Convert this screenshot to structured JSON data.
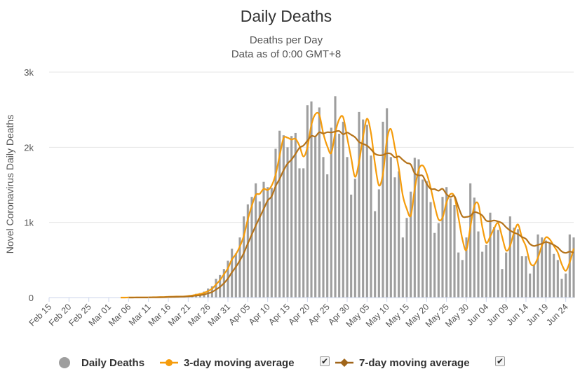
{
  "chart_data": {
    "type": "bar+line",
    "title": "Daily Deaths",
    "subtitle": [
      "Deaths per Day",
      "Data as of 0:00 GMT+8"
    ],
    "ylabel": "Novel Coronavirus Daily Deaths",
    "ylim": [
      0,
      3000
    ],
    "yticks": [
      0,
      1000,
      2000,
      3000
    ],
    "ytick_labels": [
      "0",
      "1k",
      "2k",
      "3k"
    ],
    "start_date": "Feb 15",
    "xtick_labels": [
      "Feb 15",
      "Feb 20",
      "Feb 25",
      "Mar 01",
      "Mar 06",
      "Mar 11",
      "Mar 16",
      "Mar 21",
      "Mar 26",
      "Mar 31",
      "Apr 05",
      "Apr 10",
      "Apr 15",
      "Apr 20",
      "Apr 25",
      "Apr 30",
      "May 05",
      "May 10",
      "May 15",
      "May 20",
      "May 25",
      "May 30",
      "Jun 04",
      "Jun 09",
      "Jun 14",
      "Jun 19",
      "Jun 24"
    ],
    "xtick_step_days": 5,
    "series": [
      {
        "name": "Daily Deaths",
        "type": "bar",
        "color": "#9e9e9e",
        "values": [
          0,
          0,
          0,
          0,
          0,
          0,
          0,
          0,
          0,
          0,
          0,
          0,
          0,
          0,
          0,
          0,
          0,
          0,
          1,
          0,
          0,
          1,
          2,
          1,
          2,
          5,
          8,
          3,
          9,
          8,
          15,
          12,
          14,
          15,
          20,
          27,
          35,
          50,
          60,
          80,
          120,
          150,
          250,
          300,
          380,
          490,
          650,
          590,
          800,
          1080,
          1240,
          1340,
          1520,
          1280,
          1540,
          1470,
          1460,
          1980,
          2220,
          2160,
          2000,
          2150,
          2190,
          1720,
          1720,
          2560,
          2610,
          2150,
          2530,
          1870,
          1640,
          2260,
          2680,
          2180,
          2340,
          1870,
          1370,
          1580,
          2470,
          2370,
          2300,
          1890,
          1150,
          1440,
          2340,
          2520,
          1870,
          1600,
          1680,
          800,
          1060,
          1410,
          1860,
          1840,
          1570,
          1550,
          1270,
          860,
          990,
          1340,
          1470,
          1320,
          1230,
          600,
          500,
          800,
          1520,
          1330,
          880,
          610,
          700,
          1130,
          940,
          900,
          380,
          600,
          1080,
          930,
          910,
          550,
          550,
          320,
          430,
          840,
          800,
          760,
          720,
          580,
          500,
          250,
          320,
          840,
          800
        ]
      },
      {
        "name": "3-day moving average",
        "type": "line",
        "color": "#f59c0c",
        "values": [
          0,
          0,
          0,
          0,
          0,
          0,
          0,
          0,
          0,
          0,
          0,
          0,
          0,
          0,
          0,
          0,
          0,
          0,
          0,
          0,
          1,
          1,
          1,
          1,
          2,
          3,
          5,
          5,
          7,
          7,
          11,
          12,
          14,
          14,
          16,
          21,
          27,
          37,
          48,
          63,
          87,
          117,
          173,
          233,
          310,
          390,
          507,
          577,
          680,
          823,
          1040,
          1220,
          1367,
          1380,
          1447,
          1430,
          1490,
          1637,
          1887,
          2120,
          2127,
          2103,
          2113,
          2020,
          1877,
          2000,
          2297,
          2440,
          2430,
          2183,
          2013,
          1923,
          2193,
          2373,
          2400,
          2130,
          1860,
          1607,
          1807,
          2140,
          2380,
          2187,
          1780,
          1493,
          1643,
          2100,
          2243,
          1997,
          1717,
          1360,
          1180,
          1090,
          1443,
          1703,
          1757,
          1653,
          1463,
          1227,
          1040,
          1063,
          1267,
          1377,
          1340,
          1067,
          777,
          633,
          940,
          1217,
          1243,
          940,
          730,
          813,
          923,
          990,
          807,
          627,
          687,
          870,
          973,
          797,
          677,
          467,
          433,
          530,
          690,
          800,
          773,
          687,
          600,
          443,
          357,
          470,
          653
        ]
      },
      {
        "name": "7-day moving average",
        "type": "line",
        "color": "#b5731a",
        "values": [
          0,
          0,
          0,
          0,
          0,
          0,
          0,
          0,
          0,
          0,
          0,
          0,
          0,
          0,
          0,
          0,
          0,
          0,
          0,
          0,
          0,
          0,
          1,
          1,
          1,
          2,
          3,
          3,
          4,
          5,
          7,
          9,
          10,
          12,
          13,
          16,
          20,
          26,
          32,
          41,
          56,
          74,
          107,
          143,
          191,
          253,
          336,
          408,
          493,
          594,
          718,
          839,
          958,
          1068,
          1180,
          1291,
          1347,
          1483,
          1579,
          1693,
          1782,
          1836,
          1911,
          1993,
          2024,
          2087,
          2150,
          2145,
          2200,
          2183,
          2201,
          2197,
          2209,
          2216,
          2173,
          2196,
          2166,
          2133,
          2070,
          2045,
          2022,
          1972,
          1914,
          1894,
          1897,
          1919,
          1913,
          1865,
          1878,
          1833,
          1792,
          1771,
          1654,
          1626,
          1620,
          1516,
          1447,
          1444,
          1422,
          1447,
          1375,
          1339,
          1350,
          1204,
          1081,
          1073,
          1087,
          1137,
          1124,
          1092,
          1024,
          1016,
          1026,
          1012,
          990,
          935,
          893,
          863,
          843,
          806,
          780,
          713,
          687,
          701,
          717,
          739,
          725,
          700,
          667,
          614,
          594,
          612,
          597
        ]
      }
    ],
    "legend": [
      {
        "label": "Daily Deaths",
        "symbol": "circle",
        "color": "#9e9e9e"
      },
      {
        "label": "3-day moving average",
        "symbol": "line-circle",
        "color": "#f59c0c",
        "checkbox": "✔"
      },
      {
        "label": "7-day moving average",
        "symbol": "line-diamond",
        "color": "#a0651a",
        "checkbox": "✔"
      }
    ]
  }
}
